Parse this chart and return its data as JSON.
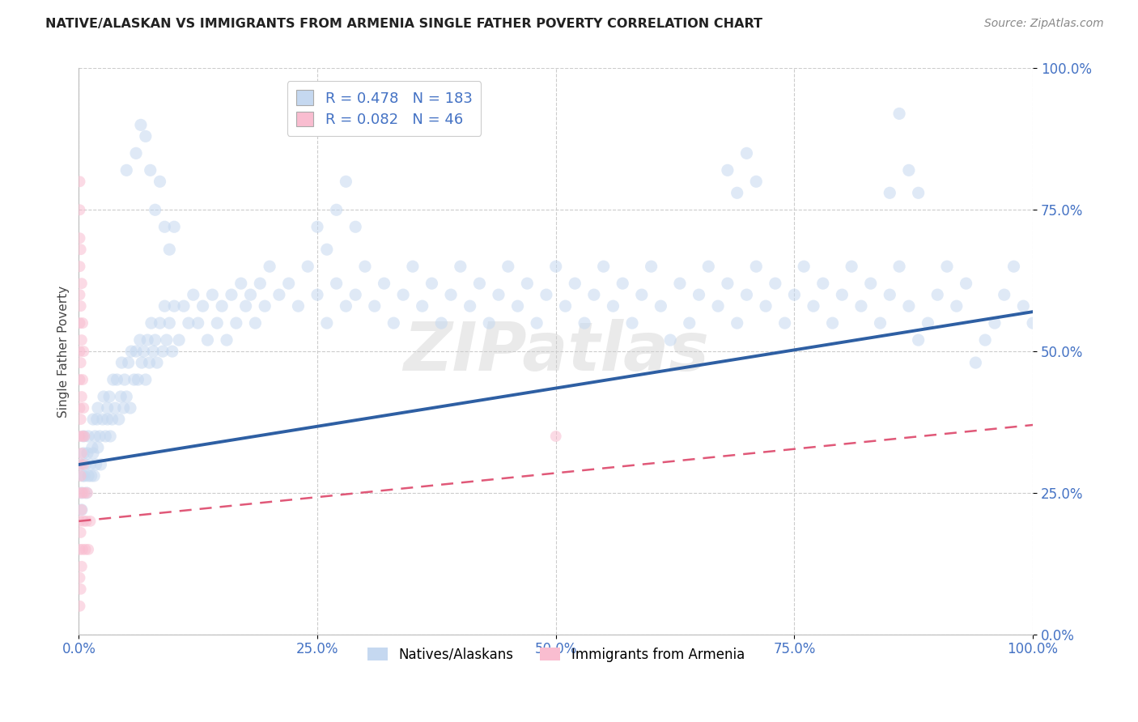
{
  "title": "NATIVE/ALASKAN VS IMMIGRANTS FROM ARMENIA SINGLE FATHER POVERTY CORRELATION CHART",
  "source": "Source: ZipAtlas.com",
  "ylabel": "Single Father Poverty",
  "xlim": [
    0,
    1
  ],
  "ylim": [
    0,
    1
  ],
  "x_ticks": [
    0.0,
    0.25,
    0.5,
    0.75,
    1.0
  ],
  "y_ticks": [
    0.0,
    0.25,
    0.5,
    0.75,
    1.0
  ],
  "tick_labels": [
    "0.0%",
    "25.0%",
    "50.0%",
    "75.0%",
    "100.0%"
  ],
  "legend_entries": [
    {
      "label": "Natives/Alaskans",
      "color": "#C5D8F0",
      "R": 0.478,
      "N": 183
    },
    {
      "label": "Immigrants from Armenia",
      "color": "#F9BDD0",
      "R": 0.082,
      "N": 46
    }
  ],
  "watermark": "ZIPatlas",
  "blue_scatter": [
    [
      0.002,
      0.3
    ],
    [
      0.003,
      0.25
    ],
    [
      0.003,
      0.22
    ],
    [
      0.004,
      0.28
    ],
    [
      0.005,
      0.32
    ],
    [
      0.005,
      0.35
    ],
    [
      0.006,
      0.28
    ],
    [
      0.007,
      0.3
    ],
    [
      0.008,
      0.25
    ],
    [
      0.009,
      0.32
    ],
    [
      0.01,
      0.28
    ],
    [
      0.01,
      0.35
    ],
    [
      0.012,
      0.3
    ],
    [
      0.013,
      0.28
    ],
    [
      0.014,
      0.33
    ],
    [
      0.015,
      0.38
    ],
    [
      0.015,
      0.32
    ],
    [
      0.016,
      0.28
    ],
    [
      0.017,
      0.35
    ],
    [
      0.018,
      0.3
    ],
    [
      0.019,
      0.38
    ],
    [
      0.02,
      0.33
    ],
    [
      0.02,
      0.4
    ],
    [
      0.022,
      0.35
    ],
    [
      0.023,
      0.3
    ],
    [
      0.025,
      0.38
    ],
    [
      0.026,
      0.42
    ],
    [
      0.028,
      0.35
    ],
    [
      0.03,
      0.4
    ],
    [
      0.03,
      0.38
    ],
    [
      0.032,
      0.42
    ],
    [
      0.033,
      0.35
    ],
    [
      0.035,
      0.38
    ],
    [
      0.036,
      0.45
    ],
    [
      0.038,
      0.4
    ],
    [
      0.04,
      0.45
    ],
    [
      0.042,
      0.38
    ],
    [
      0.044,
      0.42
    ],
    [
      0.045,
      0.48
    ],
    [
      0.047,
      0.4
    ],
    [
      0.048,
      0.45
    ],
    [
      0.05,
      0.42
    ],
    [
      0.052,
      0.48
    ],
    [
      0.054,
      0.4
    ],
    [
      0.055,
      0.5
    ],
    [
      0.058,
      0.45
    ],
    [
      0.06,
      0.5
    ],
    [
      0.062,
      0.45
    ],
    [
      0.064,
      0.52
    ],
    [
      0.066,
      0.48
    ],
    [
      0.068,
      0.5
    ],
    [
      0.07,
      0.45
    ],
    [
      0.072,
      0.52
    ],
    [
      0.074,
      0.48
    ],
    [
      0.076,
      0.55
    ],
    [
      0.078,
      0.5
    ],
    [
      0.08,
      0.52
    ],
    [
      0.082,
      0.48
    ],
    [
      0.085,
      0.55
    ],
    [
      0.088,
      0.5
    ],
    [
      0.09,
      0.58
    ],
    [
      0.092,
      0.52
    ],
    [
      0.095,
      0.55
    ],
    [
      0.098,
      0.5
    ],
    [
      0.1,
      0.58
    ],
    [
      0.105,
      0.52
    ],
    [
      0.11,
      0.58
    ],
    [
      0.115,
      0.55
    ],
    [
      0.12,
      0.6
    ],
    [
      0.125,
      0.55
    ],
    [
      0.13,
      0.58
    ],
    [
      0.135,
      0.52
    ],
    [
      0.14,
      0.6
    ],
    [
      0.145,
      0.55
    ],
    [
      0.15,
      0.58
    ],
    [
      0.155,
      0.52
    ],
    [
      0.16,
      0.6
    ],
    [
      0.165,
      0.55
    ],
    [
      0.17,
      0.62
    ],
    [
      0.175,
      0.58
    ],
    [
      0.18,
      0.6
    ],
    [
      0.185,
      0.55
    ],
    [
      0.19,
      0.62
    ],
    [
      0.195,
      0.58
    ],
    [
      0.2,
      0.65
    ],
    [
      0.21,
      0.6
    ],
    [
      0.22,
      0.62
    ],
    [
      0.23,
      0.58
    ],
    [
      0.24,
      0.65
    ],
    [
      0.25,
      0.6
    ],
    [
      0.26,
      0.55
    ],
    [
      0.27,
      0.62
    ],
    [
      0.28,
      0.58
    ],
    [
      0.29,
      0.6
    ],
    [
      0.3,
      0.65
    ],
    [
      0.31,
      0.58
    ],
    [
      0.32,
      0.62
    ],
    [
      0.33,
      0.55
    ],
    [
      0.34,
      0.6
    ],
    [
      0.35,
      0.65
    ],
    [
      0.36,
      0.58
    ],
    [
      0.37,
      0.62
    ],
    [
      0.38,
      0.55
    ],
    [
      0.39,
      0.6
    ],
    [
      0.4,
      0.65
    ],
    [
      0.41,
      0.58
    ],
    [
      0.42,
      0.62
    ],
    [
      0.43,
      0.55
    ],
    [
      0.44,
      0.6
    ],
    [
      0.45,
      0.65
    ],
    [
      0.46,
      0.58
    ],
    [
      0.47,
      0.62
    ],
    [
      0.48,
      0.55
    ],
    [
      0.49,
      0.6
    ],
    [
      0.5,
      0.65
    ],
    [
      0.51,
      0.58
    ],
    [
      0.52,
      0.62
    ],
    [
      0.53,
      0.55
    ],
    [
      0.54,
      0.6
    ],
    [
      0.55,
      0.65
    ],
    [
      0.56,
      0.58
    ],
    [
      0.57,
      0.62
    ],
    [
      0.58,
      0.55
    ],
    [
      0.59,
      0.6
    ],
    [
      0.6,
      0.65
    ],
    [
      0.61,
      0.58
    ],
    [
      0.62,
      0.52
    ],
    [
      0.63,
      0.62
    ],
    [
      0.64,
      0.55
    ],
    [
      0.65,
      0.6
    ],
    [
      0.66,
      0.65
    ],
    [
      0.67,
      0.58
    ],
    [
      0.68,
      0.62
    ],
    [
      0.69,
      0.55
    ],
    [
      0.7,
      0.6
    ],
    [
      0.71,
      0.65
    ],
    [
      0.72,
      0.58
    ],
    [
      0.73,
      0.62
    ],
    [
      0.74,
      0.55
    ],
    [
      0.75,
      0.6
    ],
    [
      0.76,
      0.65
    ],
    [
      0.77,
      0.58
    ],
    [
      0.78,
      0.62
    ],
    [
      0.79,
      0.55
    ],
    [
      0.8,
      0.6
    ],
    [
      0.81,
      0.65
    ],
    [
      0.82,
      0.58
    ],
    [
      0.83,
      0.62
    ],
    [
      0.84,
      0.55
    ],
    [
      0.85,
      0.6
    ],
    [
      0.86,
      0.65
    ],
    [
      0.87,
      0.58
    ],
    [
      0.88,
      0.52
    ],
    [
      0.89,
      0.55
    ],
    [
      0.9,
      0.6
    ],
    [
      0.91,
      0.65
    ],
    [
      0.92,
      0.58
    ],
    [
      0.93,
      0.62
    ],
    [
      0.94,
      0.48
    ],
    [
      0.95,
      0.52
    ],
    [
      0.96,
      0.55
    ],
    [
      0.97,
      0.6
    ],
    [
      0.98,
      0.65
    ],
    [
      0.99,
      0.58
    ],
    [
      1.0,
      0.55
    ],
    [
      0.05,
      0.82
    ],
    [
      0.06,
      0.85
    ],
    [
      0.065,
      0.9
    ],
    [
      0.07,
      0.88
    ],
    [
      0.075,
      0.82
    ],
    [
      0.08,
      0.75
    ],
    [
      0.085,
      0.8
    ],
    [
      0.09,
      0.72
    ],
    [
      0.095,
      0.68
    ],
    [
      0.1,
      0.72
    ],
    [
      0.25,
      0.72
    ],
    [
      0.26,
      0.68
    ],
    [
      0.27,
      0.75
    ],
    [
      0.28,
      0.8
    ],
    [
      0.29,
      0.72
    ],
    [
      0.68,
      0.82
    ],
    [
      0.69,
      0.78
    ],
    [
      0.7,
      0.85
    ],
    [
      0.71,
      0.8
    ],
    [
      0.85,
      0.78
    ],
    [
      0.86,
      0.92
    ],
    [
      0.87,
      0.82
    ],
    [
      0.88,
      0.78
    ]
  ],
  "pink_scatter": [
    [
      0.001,
      0.05
    ],
    [
      0.001,
      0.1
    ],
    [
      0.001,
      0.15
    ],
    [
      0.001,
      0.2
    ],
    [
      0.001,
      0.25
    ],
    [
      0.001,
      0.3
    ],
    [
      0.001,
      0.35
    ],
    [
      0.001,
      0.4
    ],
    [
      0.001,
      0.45
    ],
    [
      0.001,
      0.5
    ],
    [
      0.001,
      0.55
    ],
    [
      0.001,
      0.6
    ],
    [
      0.001,
      0.65
    ],
    [
      0.001,
      0.7
    ],
    [
      0.001,
      0.75
    ],
    [
      0.001,
      0.8
    ],
    [
      0.002,
      0.08
    ],
    [
      0.002,
      0.18
    ],
    [
      0.002,
      0.28
    ],
    [
      0.002,
      0.38
    ],
    [
      0.002,
      0.48
    ],
    [
      0.002,
      0.58
    ],
    [
      0.002,
      0.68
    ],
    [
      0.003,
      0.12
    ],
    [
      0.003,
      0.22
    ],
    [
      0.003,
      0.32
    ],
    [
      0.003,
      0.42
    ],
    [
      0.003,
      0.52
    ],
    [
      0.003,
      0.62
    ],
    [
      0.004,
      0.15
    ],
    [
      0.004,
      0.25
    ],
    [
      0.004,
      0.35
    ],
    [
      0.004,
      0.45
    ],
    [
      0.004,
      0.55
    ],
    [
      0.005,
      0.2
    ],
    [
      0.005,
      0.3
    ],
    [
      0.005,
      0.4
    ],
    [
      0.005,
      0.5
    ],
    [
      0.006,
      0.25
    ],
    [
      0.006,
      0.35
    ],
    [
      0.007,
      0.15
    ],
    [
      0.008,
      0.2
    ],
    [
      0.009,
      0.25
    ],
    [
      0.01,
      0.15
    ],
    [
      0.012,
      0.2
    ],
    [
      0.5,
      0.35
    ]
  ],
  "blue_line_x": [
    0.0,
    1.0
  ],
  "blue_line_y": [
    0.3,
    0.57
  ],
  "pink_line_x": [
    0.0,
    1.0
  ],
  "pink_line_y": [
    0.2,
    0.37
  ],
  "scatter_size_blue": 120,
  "scatter_size_pink": 100,
  "scatter_alpha": 0.55
}
